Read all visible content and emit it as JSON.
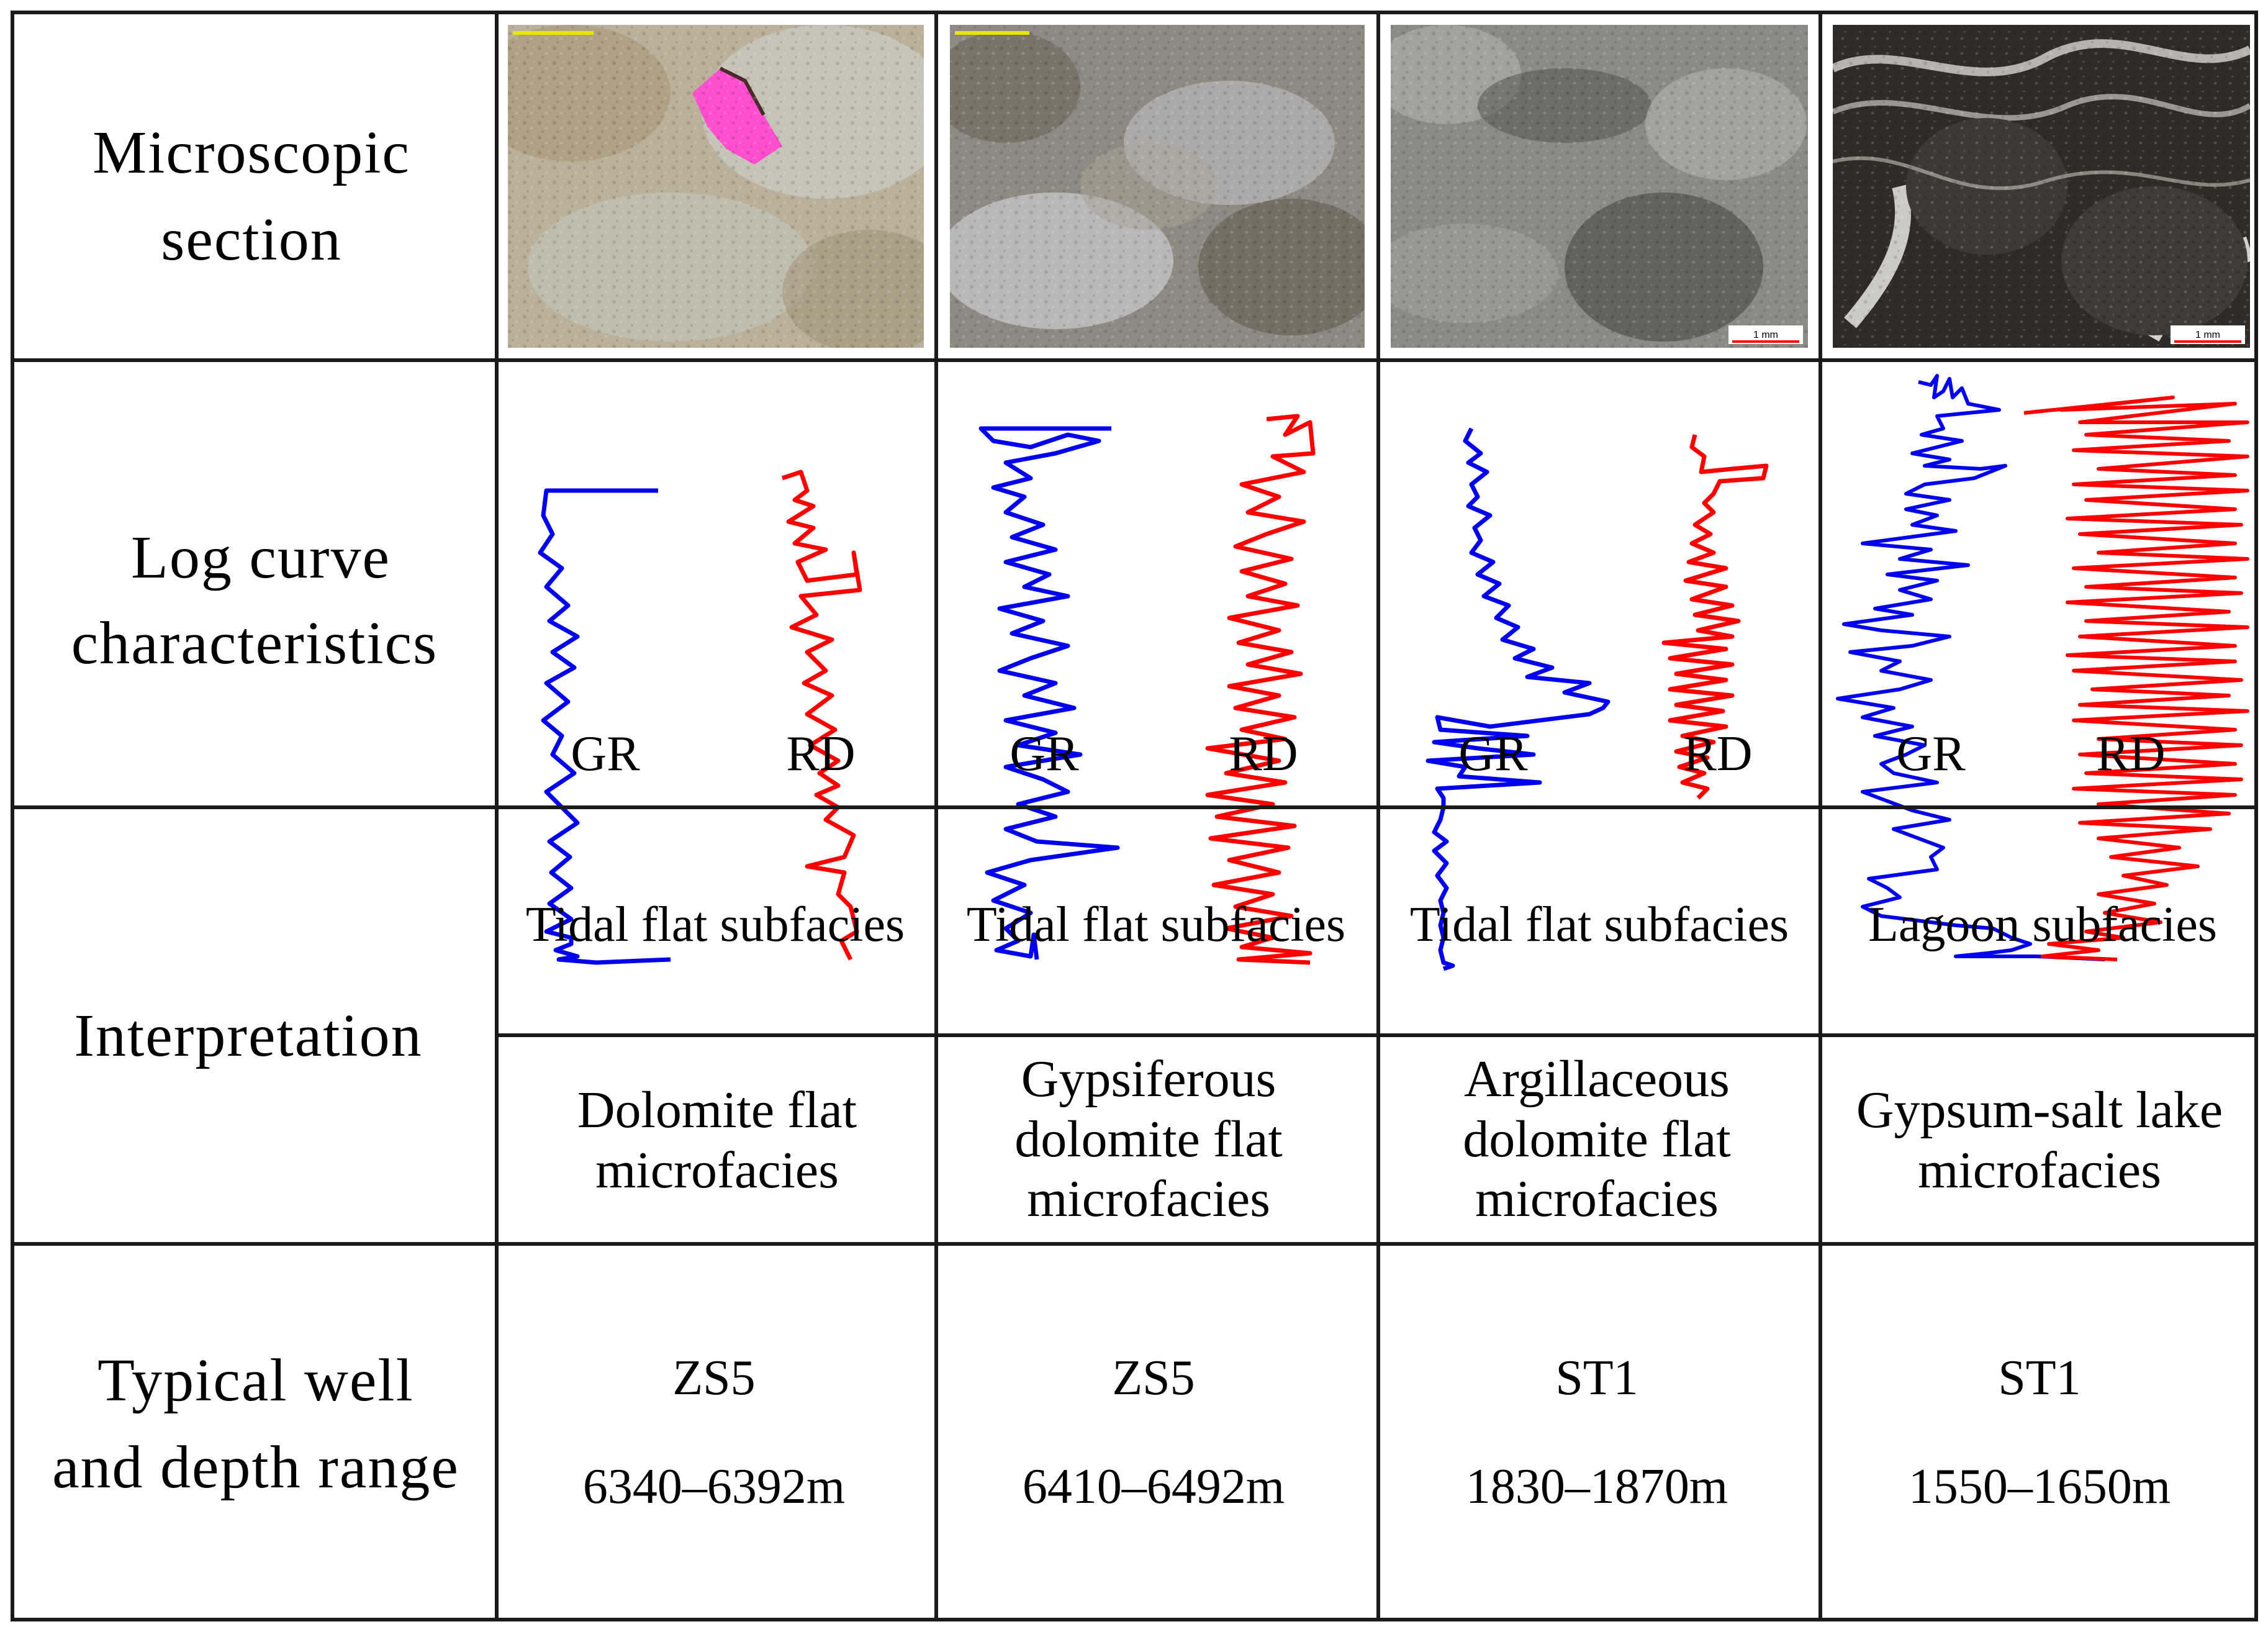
{
  "row_labels": {
    "microscopic": [
      "Microscopic",
      "section"
    ],
    "log": [
      "Log curve",
      "characteristics"
    ],
    "interpretation": "Interpretation",
    "well": [
      "Typical well",
      "and depth range"
    ]
  },
  "curve_labels": {
    "gr": "GR",
    "rd": "RD"
  },
  "scale_bar_label": "1 mm",
  "colors": {
    "gr_curve": "#0000ee",
    "rd_curve": "#ff0000",
    "grid": "#1a1a1a",
    "scale_mark": "#e6e600",
    "stain": "#ff4fcf"
  },
  "columns": [
    {
      "subfacies": "Tidal flat subfacies",
      "microfacies": [
        "Dolomite flat",
        "microfacies"
      ],
      "well": "ZS5",
      "depth": "6340–6392m",
      "photo": "light dolomite with pink cast porosity",
      "scale": "yellow-bar"
    },
    {
      "subfacies": "Tidal flat subfacies",
      "microfacies": [
        "Gypsiferous",
        "dolomite flat",
        "microfacies"
      ],
      "well": "ZS5",
      "depth": "6410–6492m",
      "photo": "grey mottled gypsiferous dolomite",
      "scale": "yellow-bar"
    },
    {
      "subfacies": "Tidal flat subfacies",
      "microfacies": [
        "Argillaceous",
        "dolomite flat",
        "microfacies"
      ],
      "well": "ST1",
      "depth": "1830–1870m",
      "photo": "grey argillaceous dolomite",
      "scale": "1 mm"
    },
    {
      "subfacies": "Lagoon subfacies",
      "microfacies": [
        "Gypsum-salt lake",
        "microfacies"
      ],
      "well": "ST1",
      "depth": "1550–1650m",
      "photo": "dark laminated gypsum-salt",
      "scale": "1 mm"
    }
  ]
}
